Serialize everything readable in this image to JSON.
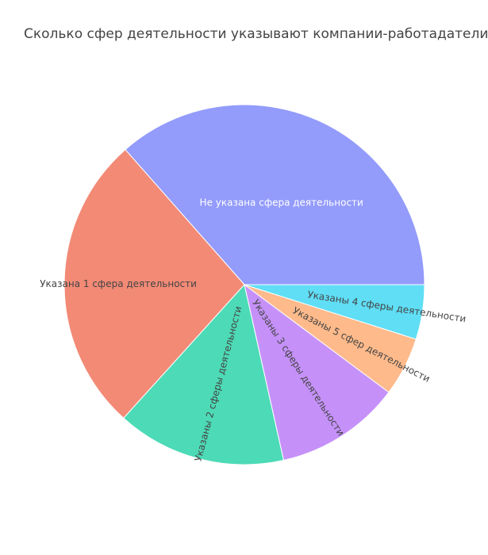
{
  "chart_data": {
    "type": "pie",
    "title": "Сколько сфер деятельности указывают компании-работадатели.",
    "sort": "descending",
    "direction": "clockwise",
    "start": "3 o'clock",
    "slices": [
      {
        "label": "Не указана сфера деятельности",
        "value": 36.5,
        "color": "#939bfb",
        "text_color": "#ffffff"
      },
      {
        "label": "Указана 1 сфера деятельности",
        "value": 26.8,
        "color": "#f28a76",
        "text_color": "#444444"
      },
      {
        "label": "Указаны 2 сферы деятельности",
        "value": 15.2,
        "color": "#4ddab6",
        "text_color": "#444444"
      },
      {
        "label": "Указаны 3 сферы деятельности",
        "value": 11.3,
        "color": "#c591f9",
        "text_color": "#444444"
      },
      {
        "label": "Указаны 5 сфер деятельности",
        "value": 5.3,
        "color": "#feba8b",
        "text_color": "#444444"
      },
      {
        "label": "Указаны 4 сферы деятельности",
        "value": 4.9,
        "color": "#5fdef5",
        "text_color": "#444444"
      }
    ]
  }
}
